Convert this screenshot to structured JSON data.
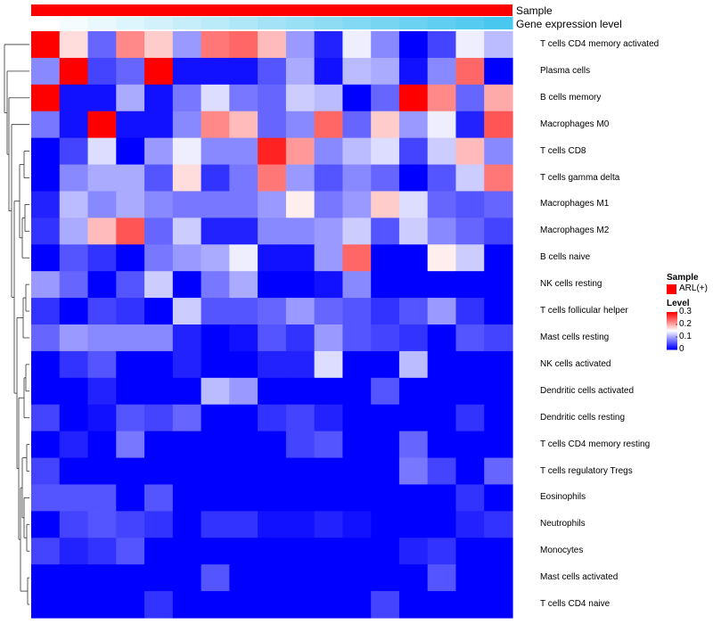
{
  "chart_data": {
    "type": "heatmap",
    "annotations": [
      {
        "name": "Sample",
        "colors": [
          "#ff0000"
        ]
      },
      {
        "name": "Gene expression level",
        "colors": [
          "#ffffff",
          "#49c7ee"
        ]
      }
    ],
    "rows": [
      "T cells CD4 memory activated",
      "Plasma cells",
      "B cells memory",
      "Macrophages M0",
      "T cells CD8",
      "T cells gamma delta",
      "Macrophages M1",
      "Macrophages M2",
      "B cells naive",
      "NK cells resting",
      "T cells follicular helper",
      "Mast cells resting",
      "NK cells activated",
      "Dendritic cells activated",
      "Dendritic cells resting",
      "T cells CD4 memory resting",
      "T cells regulatory  Tregs",
      "Eosinophils",
      "Neutrophils",
      "Monocytes",
      "Mast cells activated",
      "T cells CD4 naive"
    ],
    "values": [
      [
        0.3,
        0.17,
        0.06,
        0.22,
        0.18,
        0.09,
        0.23,
        0.24,
        0.19,
        0.09,
        0.02,
        0.14,
        0.08,
        0.0,
        0.04,
        0.14,
        0.11
      ],
      [
        0.08,
        0.3,
        0.04,
        0.06,
        0.3,
        0.01,
        0.01,
        0.01,
        0.05,
        0.1,
        0.01,
        0.11,
        0.1,
        0.01,
        0.08,
        0.24,
        0.0
      ],
      [
        0.3,
        0.01,
        0.01,
        0.1,
        0.01,
        0.07,
        0.13,
        0.07,
        0.06,
        0.12,
        0.11,
        0.0,
        0.06,
        0.3,
        0.22,
        0.06,
        0.2
      ],
      [
        0.07,
        0.01,
        0.3,
        0.01,
        0.01,
        0.08,
        0.22,
        0.19,
        0.06,
        0.08,
        0.24,
        0.06,
        0.18,
        0.09,
        0.14,
        0.02,
        0.25
      ],
      [
        0.0,
        0.04,
        0.13,
        0.0,
        0.09,
        0.14,
        0.08,
        0.08,
        0.28,
        0.21,
        0.08,
        0.11,
        0.13,
        0.04,
        0.12,
        0.19,
        0.08
      ],
      [
        0.0,
        0.08,
        0.1,
        0.1,
        0.05,
        0.17,
        0.03,
        0.07,
        0.23,
        0.09,
        0.05,
        0.08,
        0.06,
        0.0,
        0.05,
        0.12,
        0.23
      ],
      [
        0.02,
        0.11,
        0.08,
        0.1,
        0.08,
        0.07,
        0.07,
        0.07,
        0.09,
        0.16,
        0.07,
        0.09,
        0.18,
        0.13,
        0.06,
        0.05,
        0.06
      ],
      [
        0.03,
        0.1,
        0.19,
        0.25,
        0.06,
        0.12,
        0.02,
        0.02,
        0.08,
        0.08,
        0.09,
        0.12,
        0.05,
        0.12,
        0.08,
        0.06,
        0.04
      ],
      [
        0.0,
        0.05,
        0.03,
        0.0,
        0.07,
        0.09,
        0.1,
        0.14,
        0.01,
        0.01,
        0.09,
        0.24,
        0.0,
        0.0,
        0.16,
        0.12,
        0.0
      ],
      [
        0.09,
        0.06,
        0.0,
        0.05,
        0.12,
        0.0,
        0.07,
        0.1,
        0.0,
        0.0,
        0.01,
        0.08,
        0.0,
        0.0,
        0.0,
        0.0,
        0.0
      ],
      [
        0.03,
        0.0,
        0.04,
        0.03,
        0.0,
        0.12,
        0.05,
        0.05,
        0.06,
        0.09,
        0.06,
        0.05,
        0.03,
        0.05,
        0.09,
        0.03,
        0.0
      ],
      [
        0.06,
        0.09,
        0.08,
        0.08,
        0.08,
        0.02,
        0.0,
        0.01,
        0.05,
        0.03,
        0.09,
        0.05,
        0.04,
        0.03,
        0.0,
        0.05,
        0.04
      ],
      [
        0.0,
        0.03,
        0.05,
        0.0,
        0.0,
        0.02,
        0.0,
        0.0,
        0.02,
        0.02,
        0.13,
        0.0,
        0.0,
        0.11,
        0.0,
        0.0,
        0.0
      ],
      [
        0.0,
        0.0,
        0.02,
        0.0,
        0.0,
        0.0,
        0.11,
        0.09,
        0.0,
        0.0,
        0.0,
        0.0,
        0.05,
        0.0,
        0.0,
        0.0,
        0.0
      ],
      [
        0.04,
        0.0,
        0.01,
        0.05,
        0.04,
        0.06,
        0.0,
        0.0,
        0.03,
        0.04,
        0.02,
        0.0,
        0.0,
        0.0,
        0.0,
        0.03,
        0.0
      ],
      [
        0.0,
        0.02,
        0.0,
        0.07,
        0.0,
        0.0,
        0.0,
        0.0,
        0.0,
        0.04,
        0.05,
        0.0,
        0.0,
        0.06,
        0.0,
        0.0,
        0.0
      ],
      [
        0.04,
        0.0,
        0.0,
        0.0,
        0.0,
        0.0,
        0.0,
        0.0,
        0.0,
        0.0,
        0.0,
        0.0,
        0.0,
        0.07,
        0.04,
        0.0,
        0.06
      ],
      [
        0.05,
        0.05,
        0.05,
        0.0,
        0.05,
        0.0,
        0.0,
        0.0,
        0.0,
        0.0,
        0.0,
        0.0,
        0.0,
        0.0,
        0.0,
        0.03,
        0.0
      ],
      [
        0.0,
        0.04,
        0.05,
        0.04,
        0.03,
        0.0,
        0.03,
        0.03,
        0.01,
        0.01,
        0.02,
        0.01,
        0.0,
        0.0,
        0.0,
        0.02,
        0.03
      ],
      [
        0.04,
        0.02,
        0.03,
        0.05,
        0.0,
        0.0,
        0.0,
        0.0,
        0.0,
        0.0,
        0.0,
        0.0,
        0.0,
        0.02,
        0.03,
        0.0,
        0.0
      ],
      [
        0.0,
        0.0,
        0.0,
        0.0,
        0.0,
        0.0,
        0.05,
        0.0,
        0.0,
        0.0,
        0.0,
        0.0,
        0.0,
        0.0,
        0.05,
        0.0,
        0.0
      ],
      [
        0.0,
        0.0,
        0.0,
        0.0,
        0.03,
        0.0,
        0.0,
        0.0,
        0.0,
        0.0,
        0.0,
        0.0,
        0.04,
        0.0,
        0.0,
        0.0,
        0.0
      ]
    ],
    "color_scale": {
      "low": "#0000ff",
      "mid": "#ffffff",
      "high": "#ff0000",
      "min": 0,
      "mid_value": 0.15,
      "max": 0.3
    },
    "legend": {
      "sample_title": "Sample",
      "sample_entry": "ARL(+)",
      "sample_color": "#ff0000",
      "level_title": "Level",
      "level_ticks": [
        "0.3",
        "0.2",
        "0.1",
        "0"
      ],
      "level_tick_values": [
        0.3,
        0.2,
        0.1,
        0
      ]
    },
    "dendrogram": "row-clustered (left side)"
  }
}
